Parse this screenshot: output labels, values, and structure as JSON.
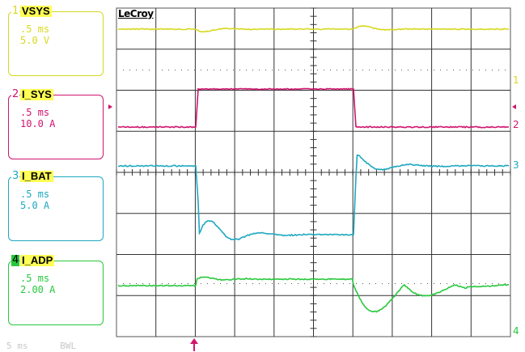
{
  "scope": {
    "brand": "LeCroy",
    "bottom_status": "5 ms      BWL"
  },
  "channels": [
    {
      "num": "1",
      "name": "VSYS",
      "timebase": ".5 ms",
      "scale": "5.0 V",
      "color": "#d8d820"
    },
    {
      "num": "2",
      "name": "I_SYS",
      "timebase": ".5 ms",
      "scale": "10.0 A",
      "color": "#d0146e"
    },
    {
      "num": "3",
      "name": "I_BAT",
      "timebase": ".5 ms",
      "scale": "5.0 A",
      "color": "#1ea8c0"
    },
    {
      "num": "4",
      "name": "I_ADP",
      "timebase": ".5 ms",
      "scale": "2.00 A",
      "color": "#28c83c"
    }
  ],
  "markers": {
    "ch1": "1",
    "ch2": "2",
    "ch3": "3",
    "ch4": "4"
  }
}
